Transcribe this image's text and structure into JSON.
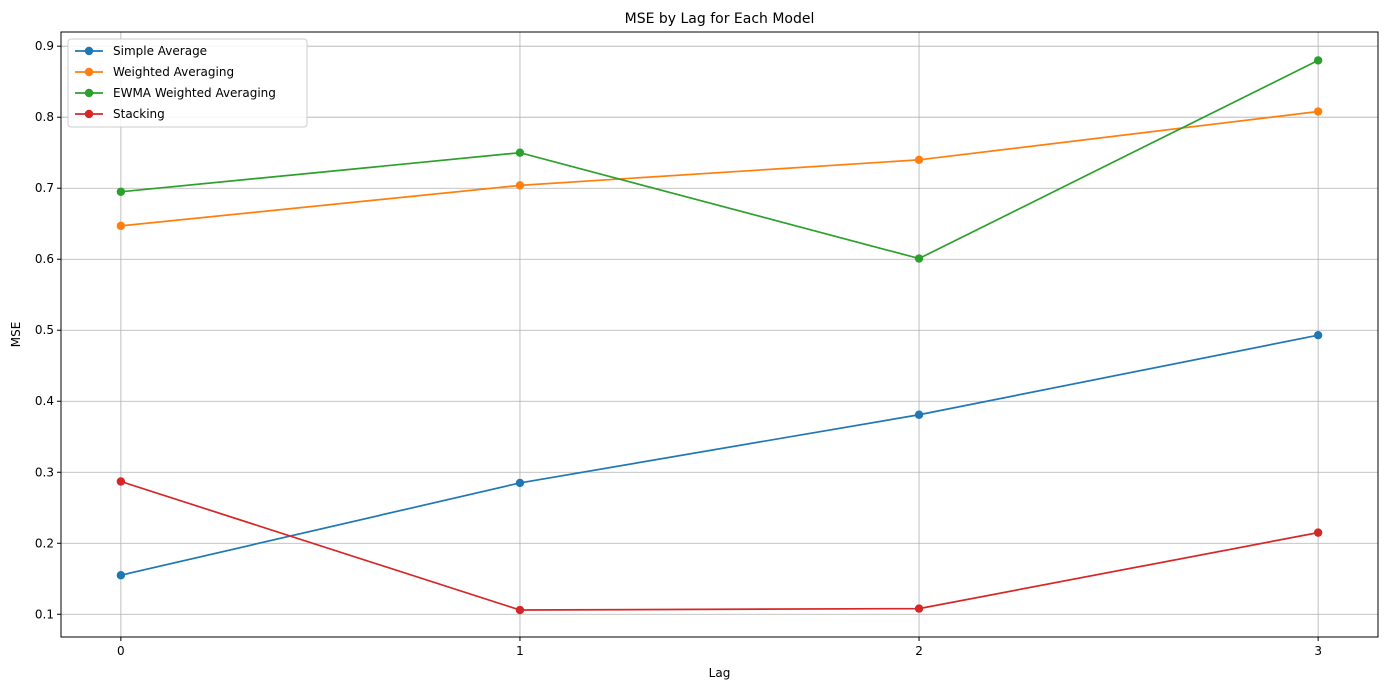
{
  "chart_data": {
    "type": "line",
    "title": "MSE by Lag for Each Model",
    "xlabel": "Lag",
    "ylabel": "MSE",
    "x": [
      0,
      1,
      2,
      3
    ],
    "x_ticks": [
      "0",
      "1",
      "2",
      "3"
    ],
    "y_ticks": [
      "0.1",
      "0.2",
      "0.3",
      "0.4",
      "0.5",
      "0.6",
      "0.7",
      "0.8",
      "0.9"
    ],
    "xlim": [
      -0.15,
      3.15
    ],
    "ylim": [
      0.068,
      0.92
    ],
    "grid": true,
    "legend_position": "top-left",
    "series": [
      {
        "name": "Simple Average",
        "color": "#1f77b4",
        "values": [
          0.155,
          0.285,
          0.381,
          0.493
        ]
      },
      {
        "name": "Weighted Averaging",
        "color": "#ff7f0e",
        "values": [
          0.647,
          0.704,
          0.74,
          0.808
        ]
      },
      {
        "name": "EWMA Weighted Averaging",
        "color": "#2ca02c",
        "values": [
          0.695,
          0.75,
          0.601,
          0.88
        ]
      },
      {
        "name": "Stacking",
        "color": "#d62728",
        "values": [
          0.287,
          0.106,
          0.108,
          0.215
        ]
      }
    ]
  }
}
